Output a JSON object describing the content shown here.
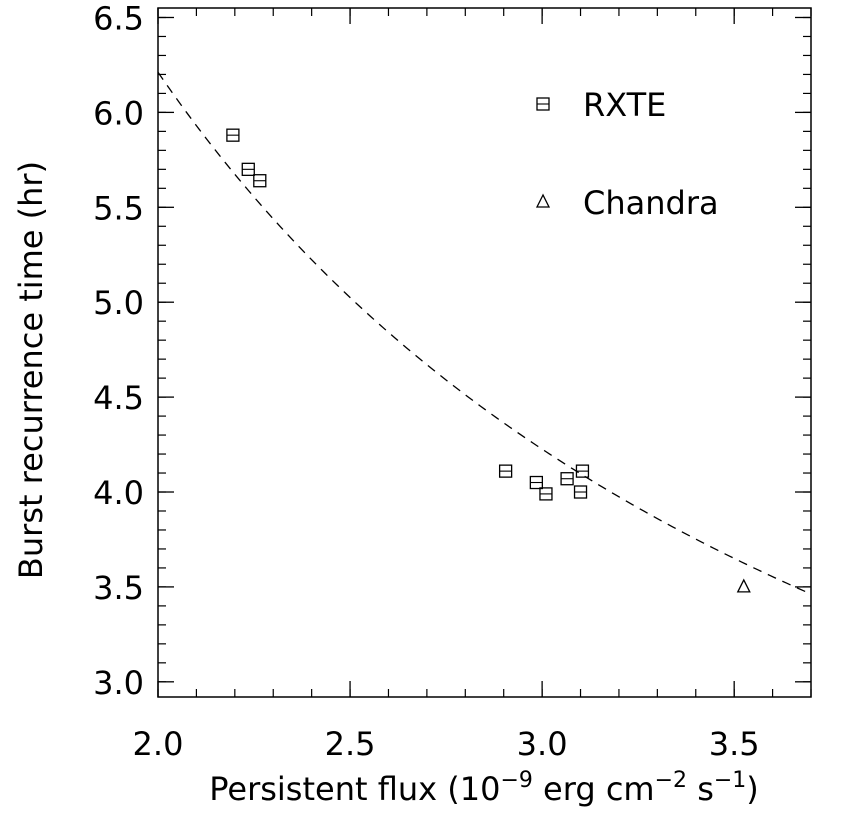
{
  "chart_data": {
    "type": "scatter",
    "title": "",
    "xlabel": {
      "prefix": "Persistent flux (10",
      "exp1": "−9",
      "mid1": " erg cm",
      "exp2": "−2",
      "mid2": " s",
      "exp3": "−1",
      "suffix": ")"
    },
    "ylabel": "Burst recurrence time (hr)",
    "xlim": [
      2.0,
      3.7
    ],
    "ylim": [
      2.92,
      6.55
    ],
    "xticks": [
      {
        "value": 2.0,
        "label": "2.0"
      },
      {
        "value": 2.5,
        "label": "2.5"
      },
      {
        "value": 3.0,
        "label": "3.0"
      },
      {
        "value": 3.5,
        "label": "3.5"
      }
    ],
    "yticks": [
      {
        "value": 3.0,
        "label": "3.0"
      },
      {
        "value": 3.5,
        "label": "3.5"
      },
      {
        "value": 4.0,
        "label": "4.0"
      },
      {
        "value": 4.5,
        "label": "4.5"
      },
      {
        "value": 5.0,
        "label": "5.0"
      },
      {
        "value": 5.5,
        "label": "5.5"
      },
      {
        "value": 6.0,
        "label": "6.0"
      },
      {
        "value": 6.5,
        "label": "6.5"
      }
    ],
    "x_minor_step": 0.1,
    "y_minor_step": 0.1,
    "legend_position": "top-right",
    "series": [
      {
        "name": "RXTE",
        "marker": "square",
        "points": [
          {
            "x": 2.195,
            "y": 5.88
          },
          {
            "x": 2.235,
            "y": 5.7
          },
          {
            "x": 2.265,
            "y": 5.64
          },
          {
            "x": 2.905,
            "y": 4.11
          },
          {
            "x": 2.985,
            "y": 4.05
          },
          {
            "x": 3.01,
            "y": 3.99
          },
          {
            "x": 3.065,
            "y": 4.07
          },
          {
            "x": 3.1,
            "y": 4.0
          },
          {
            "x": 3.105,
            "y": 4.11
          }
        ]
      },
      {
        "name": "Chandra",
        "marker": "triangle",
        "points": [
          {
            "x": 3.525,
            "y": 3.5
          }
        ]
      }
    ],
    "fit_curve": {
      "style": "dashed",
      "form": "y = A * x^(-b)",
      "A": 12.0,
      "b": 0.95
    },
    "colors": {
      "line": "#000000",
      "background": "#ffffff"
    }
  }
}
